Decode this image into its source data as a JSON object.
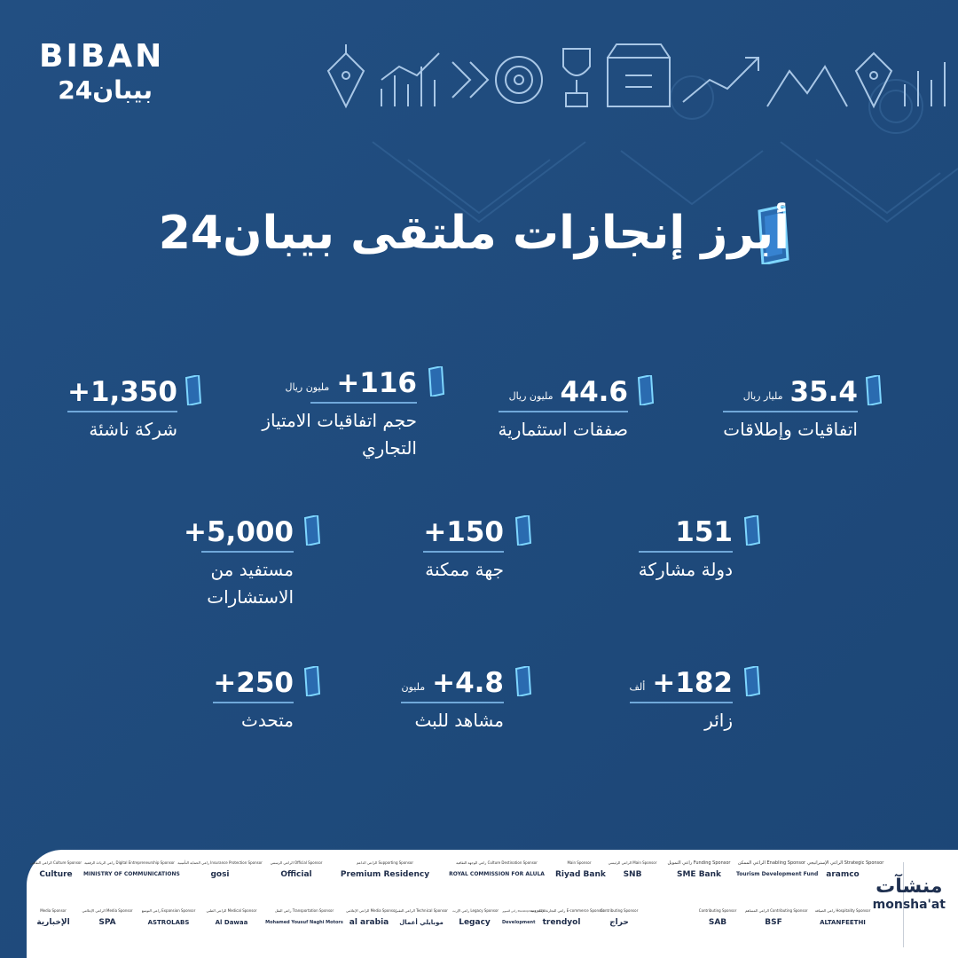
{
  "logo": {
    "en": "BIBAN",
    "ar": "بيبان24"
  },
  "title": "أبرز إنجازات ملتقى بيبان24",
  "stats": [
    {
      "id": "agreements",
      "num": "35.4",
      "unit": "مليار ريال",
      "label": "اتفاقيات وإطلاقات"
    },
    {
      "id": "investment",
      "num": "44.6",
      "unit": "مليون ريال",
      "label": "صفقات استثمارية"
    },
    {
      "id": "franchise",
      "num": "+116",
      "unit": "مليون ريال",
      "label": "حجم اتفاقيات الامتياز التجاري"
    },
    {
      "id": "startups",
      "num": "+1,350",
      "unit": "",
      "label": "شركة ناشئة"
    },
    {
      "id": "countries",
      "num": "151",
      "unit": "",
      "label": "دولة مشاركة"
    },
    {
      "id": "enablers",
      "num": "+150",
      "unit": "",
      "label": "جهة ممكنة"
    },
    {
      "id": "beneficiaries",
      "num": "+5,000",
      "unit": "",
      "label": "مستفيد من الاستشارات"
    },
    {
      "id": "visitors",
      "num": "+182",
      "unit": "ألف",
      "label": "زائر"
    },
    {
      "id": "views",
      "num": "+4.8",
      "unit": "مليون",
      "label": "مشاهد للبث"
    },
    {
      "id": "speakers",
      "num": "+250",
      "unit": "",
      "label": "متحدث"
    }
  ],
  "sponsors": [
    {
      "cap": "الراعي الإستراتيجي Strategic Sponsor",
      "name": "aramco"
    },
    {
      "cap": "الراعي الممكن Enabling Sponsor",
      "name": "Tourism Development Fund"
    },
    {
      "cap": "راعي التمويل Funding Sponsor",
      "name": "SME Bank"
    },
    {
      "cap": "الراعي الرئيسي Main Sponsor",
      "name": "SNB"
    },
    {
      "cap": "Main Sponsor",
      "name": "Riyad Bank"
    },
    {
      "cap": "راعي الوجهة الثقافية Culture Destination Sponsor",
      "name": "ROYAL COMMISSION FOR ALULA"
    },
    {
      "cap": "الراعي الداعم Supporting Sponsor",
      "name": "Premium Residency"
    },
    {
      "cap": "الراعي الرسمي Official Sponsor",
      "name": "Official"
    },
    {
      "cap": "راعي الحماية التأمينية Insurance Protection Sponsor",
      "name": "gosi"
    },
    {
      "cap": "راعي الريادة الرقمية Digital Entrepreneurship Sponsor",
      "name": "MINISTRY OF COMMUNICATIONS"
    },
    {
      "cap": "الراعي الثقافي Culture Sponsor",
      "name": "Culture"
    },
    {
      "cap": "راعي الضيافة Hospitality Sponsor",
      "name": "ALTANFEETHI"
    },
    {
      "cap": "الراعي المساهم Contributing Sponsor",
      "name": "BSF"
    },
    {
      "cap": "Contributing Sponsor",
      "name": "SAB"
    },
    {
      "cap": "Contributing Sponsor",
      "name": "حراج"
    },
    {
      "cap": "راعي التجارة الإلكترونية E-commerce Sponsor",
      "name": "trendyol"
    },
    {
      "cap": "راعي التنموي Development Sponsor",
      "name": "Development"
    },
    {
      "cap": "راعي الإرث Legacy Sponsor",
      "name": "Legacy"
    },
    {
      "cap": "الراعي التقني Technical Sponsor",
      "name": "موبايلي أعمال"
    },
    {
      "cap": "الراعي الإعلامي Media Sponsor",
      "name": "al arabia"
    },
    {
      "cap": "راعي النقل Transportation Sponsor",
      "name": "Mohamed Yousuf Naghi Motors"
    },
    {
      "cap": "الراعي الطبي Medical Sponsor",
      "name": "Al Dawaa"
    },
    {
      "cap": "راعي التوسع Expansion Sponsor",
      "name": "ASTROLABS"
    },
    {
      "cap": "الراعي الإعلامي Media Sponsor",
      "name": "SPA"
    },
    {
      "cap": "Media Sponsor",
      "name": "الإخبارية"
    }
  ],
  "monshaat": {
    "ar": "منشآت",
    "en": "monsha'at"
  }
}
